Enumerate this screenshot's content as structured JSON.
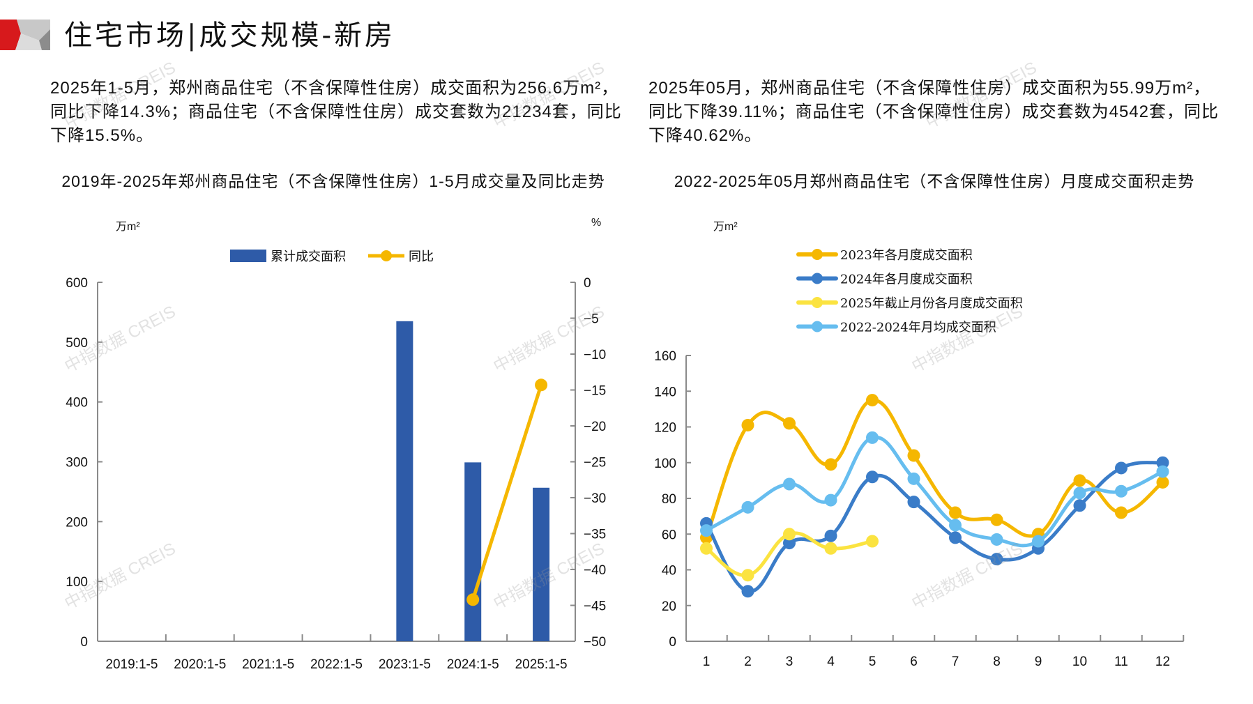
{
  "header": {
    "title": "住宅市场|成交规模-新房",
    "logo_icon": "geometric-logo-icon",
    "colors": {
      "red": "#d7191c",
      "gray_light": "#c8c8c8",
      "gray_dark": "#8c8c8c"
    }
  },
  "summary": {
    "left": "2025年1-5月，郑州商品住宅（不含保障性住房）成交面积为256.6万m²，同比下降14.3%；商品住宅（不含保障性住房）成交套数为21234套，同比下降15.5%。",
    "right": "2025年05月，郑州商品住宅（不含保障性住房）成交面积为55.99万m²，同比下降39.11%；商品住宅（不含保障性住房）成交套数为4542套，同比下降40.62%。"
  },
  "watermark": "中指数据 CREIS",
  "chart_data": [
    {
      "type": "bar",
      "title": "2019年-2025年郑州商品住宅（不含保障性住房）1-5月成交量及同比走势",
      "ylabel": "万m²",
      "y2label": "%",
      "categories": [
        "2019:1-5",
        "2020:1-5",
        "2021:1-5",
        "2022:1-5",
        "2023:1-5",
        "2024:1-5",
        "2025:1-5"
      ],
      "ylim": [
        0,
        600
      ],
      "yticks": [
        0,
        100,
        200,
        300,
        400,
        500,
        600
      ],
      "y2lim": [
        -50,
        0
      ],
      "y2ticks": [
        0,
        -5,
        -10,
        -15,
        -20,
        -25,
        -30,
        -35,
        -40,
        -45,
        -50
      ],
      "legend_position": "top-center",
      "grid": false,
      "series": [
        {
          "name": "累计成交面积",
          "type": "bar",
          "axis": "left",
          "color": "#2e5ba8",
          "values": [
            null,
            null,
            null,
            null,
            535,
            299,
            256.6
          ]
        },
        {
          "name": "同比",
          "type": "line",
          "axis": "right",
          "color": "#f5b700",
          "values": [
            null,
            null,
            null,
            null,
            null,
            -44.2,
            -14.3
          ]
        }
      ]
    },
    {
      "type": "line",
      "title": "2022-2025年05月郑州商品住宅（不含保障性住房）月度成交面积走势",
      "ylabel": "万m²",
      "x": [
        1,
        2,
        3,
        4,
        5,
        6,
        7,
        8,
        9,
        10,
        11,
        12
      ],
      "ylim": [
        0,
        160
      ],
      "yticks": [
        0,
        20,
        40,
        60,
        80,
        100,
        120,
        140,
        160
      ],
      "legend_position": "top-center",
      "grid": false,
      "series": [
        {
          "name": "2023年各月度成交面积",
          "color": "#f5b700",
          "values": [
            58,
            121,
            122,
            99,
            135,
            104,
            72,
            68,
            60,
            90,
            72,
            89
          ]
        },
        {
          "name": "2024年各月度成交面积",
          "color": "#3a7cc8",
          "values": [
            66,
            28,
            55,
            59,
            92,
            78,
            58,
            46,
            52,
            76,
            97,
            100
          ]
        },
        {
          "name": "2025年截止月份各月度成交面积",
          "color": "#fbe340",
          "values": [
            52,
            37,
            60,
            52,
            56
          ]
        },
        {
          "name": "2022-2024年月均成交面积",
          "color": "#66bdef",
          "values": [
            62,
            75,
            88,
            79,
            114,
            91,
            65,
            57,
            56,
            83,
            84,
            95
          ]
        }
      ]
    }
  ]
}
